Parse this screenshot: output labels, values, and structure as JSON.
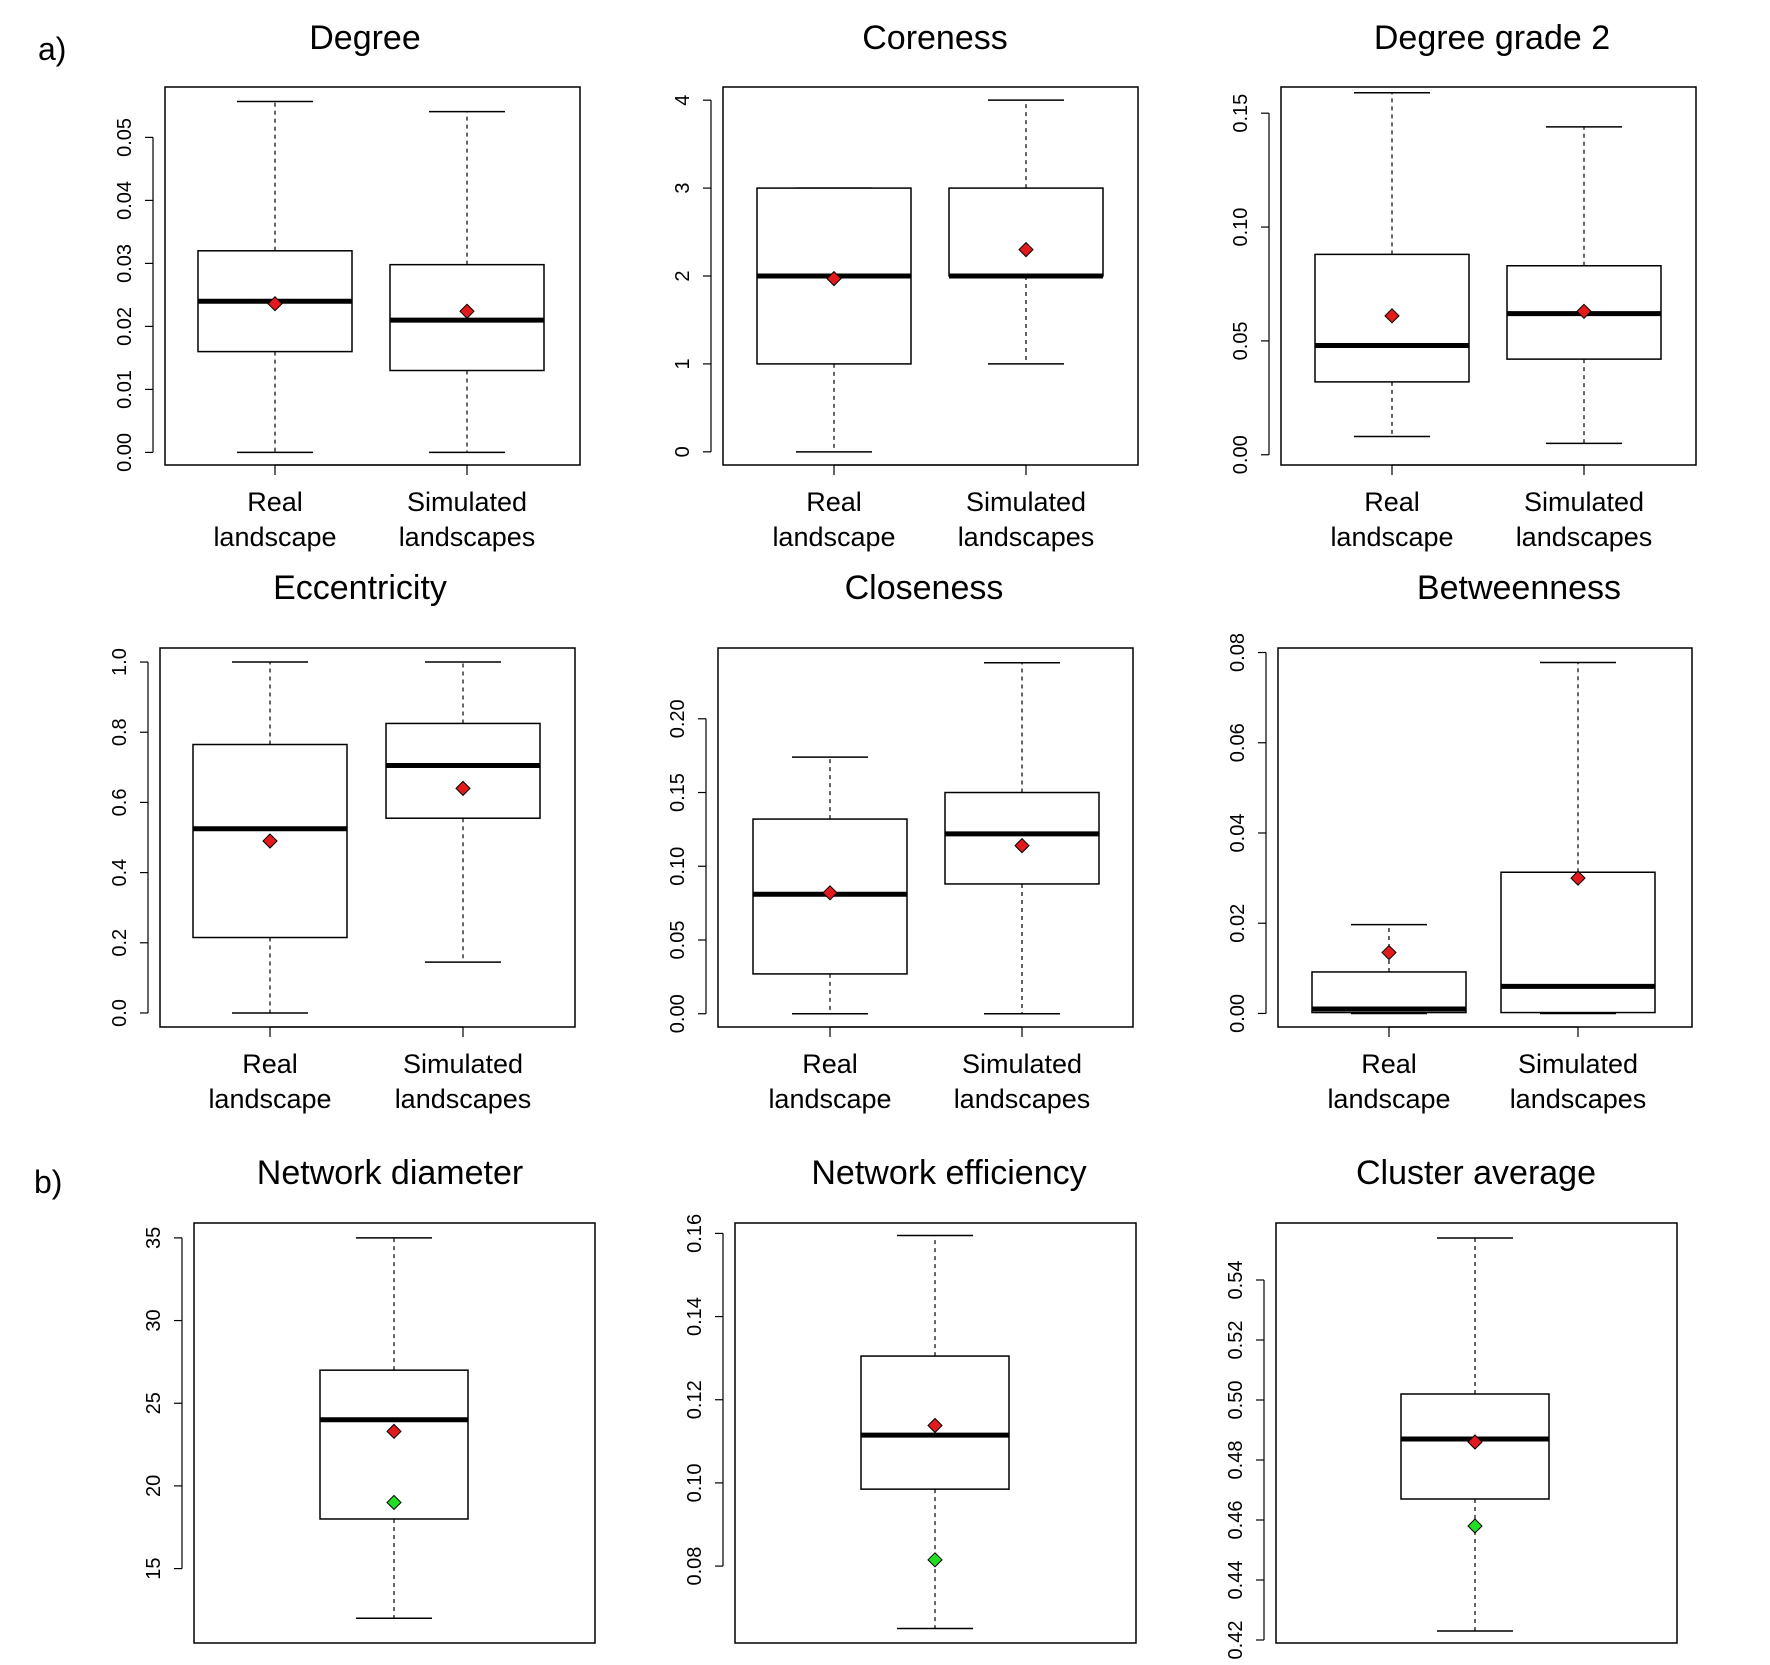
{
  "panel_labels": {
    "a": "a)",
    "b": "b)"
  },
  "colors": {
    "simulated_mean": "#e31a1c",
    "real_value": "#22dd22"
  },
  "chart_data": [
    {
      "type": "boxplot",
      "title": "Degree",
      "categories": [
        "Real\nlandscape",
        "Simulated\nlandscapes"
      ],
      "ylim": [
        -0.002,
        0.058
      ],
      "yticks": [
        "0.00",
        "0.01",
        "0.02",
        "0.03",
        "0.04",
        "0.05"
      ],
      "boxes": [
        {
          "whisker_low": 0.0,
          "q1": 0.016,
          "median": 0.024,
          "q3": 0.032,
          "whisker_high": 0.0557
        },
        {
          "whisker_low": 0.0,
          "q1": 0.013,
          "median": 0.021,
          "q3": 0.0298,
          "whisker_high": 0.0541
        }
      ],
      "means": [
        0.0236,
        0.0224
      ]
    },
    {
      "type": "boxplot",
      "title": "Coreness",
      "categories": [
        "Real\nlandscape",
        "Simulated\nlandscapes"
      ],
      "ylim": [
        -0.15,
        4.15
      ],
      "yticks": [
        "0",
        "1",
        "2",
        "3",
        "4"
      ],
      "boxes": [
        {
          "whisker_low": 0,
          "q1": 1,
          "median": 2,
          "q3": 3,
          "whisker_high": 3
        },
        {
          "whisker_low": 1,
          "q1": 2,
          "median": 2,
          "q3": 3,
          "whisker_high": 4
        }
      ],
      "means": [
        1.97,
        2.3
      ]
    },
    {
      "type": "boxplot",
      "title": "Degree grade 2",
      "categories": [
        "Real\nlandscape",
        "Simulated\nlandscapes"
      ],
      "ylim": [
        -0.0045,
        0.1615
      ],
      "yticks": [
        "0.00",
        "0.05",
        "0.10",
        "0.15"
      ],
      "boxes": [
        {
          "whisker_low": 0.008,
          "q1": 0.032,
          "median": 0.048,
          "q3": 0.088,
          "whisker_high": 0.159
        },
        {
          "whisker_low": 0.005,
          "q1": 0.042,
          "median": 0.062,
          "q3": 0.083,
          "whisker_high": 0.144
        }
      ],
      "means": [
        0.061,
        0.063
      ]
    },
    {
      "type": "boxplot",
      "title": "Eccentricity",
      "categories": [
        "Real\nlandscape",
        "Simulated\nlandscapes"
      ],
      "ylim": [
        -0.04,
        1.04
      ],
      "yticks": [
        "0.0",
        "0.2",
        "0.4",
        "0.6",
        "0.8",
        "1.0"
      ],
      "boxes": [
        {
          "whisker_low": 0.0,
          "q1": 0.215,
          "median": 0.525,
          "q3": 0.765,
          "whisker_high": 1.0
        },
        {
          "whisker_low": 0.145,
          "q1": 0.555,
          "median": 0.705,
          "q3": 0.825,
          "whisker_high": 1.0
        }
      ],
      "means": [
        0.49,
        0.64
      ]
    },
    {
      "type": "boxplot",
      "title": "Closeness",
      "categories": [
        "Real\nlandscape",
        "Simulated\nlandscapes"
      ],
      "ylim": [
        -0.009,
        0.248
      ],
      "yticks": [
        "0.00",
        "0.05",
        "0.10",
        "0.15",
        "0.20"
      ],
      "boxes": [
        {
          "whisker_low": 0.0,
          "q1": 0.027,
          "median": 0.081,
          "q3": 0.132,
          "whisker_high": 0.174
        },
        {
          "whisker_low": 0.0,
          "q1": 0.088,
          "median": 0.122,
          "q3": 0.15,
          "whisker_high": 0.238
        }
      ],
      "means": [
        0.082,
        0.114
      ]
    },
    {
      "type": "boxplot",
      "title": "Betweenness",
      "categories": [
        "Real\nlandscape",
        "Simulated\nlandscapes"
      ],
      "ylim": [
        -0.003,
        0.081
      ],
      "yticks": [
        "0.00",
        "0.02",
        "0.04",
        "0.06",
        "0.08"
      ],
      "boxes": [
        {
          "whisker_low": 0.0,
          "q1": 0.0002,
          "median": 0.001,
          "q3": 0.0092,
          "whisker_high": 0.0197
        },
        {
          "whisker_low": 0.0,
          "q1": 0.0002,
          "median": 0.006,
          "q3": 0.0313,
          "whisker_high": 0.0778
        }
      ],
      "means": [
        0.0135,
        0.03
      ]
    },
    {
      "type": "boxplot",
      "title": "Network diameter",
      "categories": [],
      "ylim": [
        10.5,
        35.9
      ],
      "yticks": [
        "15",
        "20",
        "25",
        "30",
        "35"
      ],
      "boxes": [
        {
          "whisker_low": 12,
          "q1": 18,
          "median": 24,
          "q3": 27,
          "whisker_high": 35
        }
      ],
      "means": [
        23.3
      ],
      "real_value": 19
    },
    {
      "type": "boxplot",
      "title": "Network efficiency",
      "categories": [],
      "ylim": [
        0.0615,
        0.1625
      ],
      "yticks": [
        "0.08",
        "0.10",
        "0.12",
        "0.14",
        "0.16"
      ],
      "boxes": [
        {
          "whisker_low": 0.065,
          "q1": 0.0985,
          "median": 0.1115,
          "q3": 0.1305,
          "whisker_high": 0.1595
        }
      ],
      "means": [
        0.1138
      ],
      "real_value": 0.0815
    },
    {
      "type": "boxplot",
      "title": "Cluster average",
      "categories": [],
      "ylim": [
        0.419,
        0.559
      ],
      "yticks": [
        "0.42",
        "0.44",
        "0.46",
        "0.48",
        "0.50",
        "0.52",
        "0.54"
      ],
      "boxes": [
        {
          "whisker_low": 0.423,
          "q1": 0.467,
          "median": 0.487,
          "q3": 0.502,
          "whisker_high": 0.554
        }
      ],
      "means": [
        0.486
      ],
      "real_value": 0.458
    }
  ]
}
